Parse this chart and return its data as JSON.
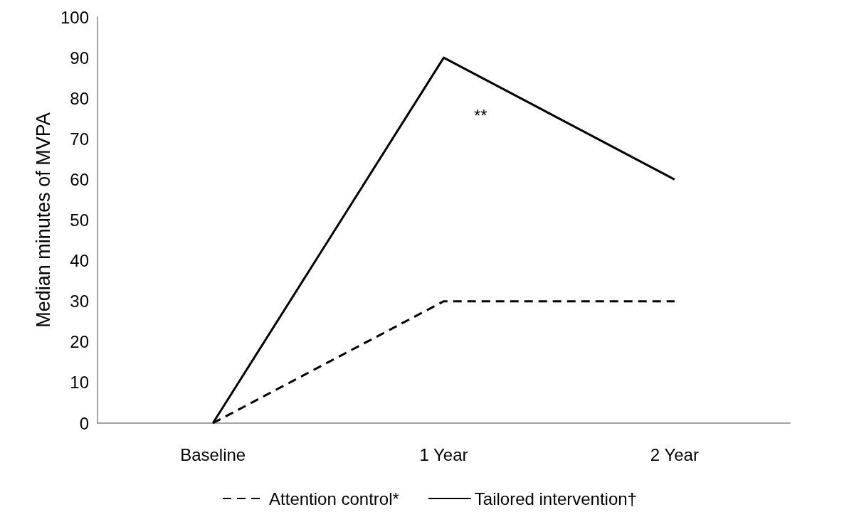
{
  "chart_data": {
    "type": "line",
    "ylabel": "Median minutes of MVPA",
    "categories": [
      "Baseline",
      "1 Year",
      "2 Year"
    ],
    "series": [
      {
        "name": "Attention control*",
        "color": "#000000",
        "line_style": "dashed",
        "values": [
          0,
          30,
          30
        ]
      },
      {
        "name": "Tailored intervention†",
        "color": "#000000",
        "line_style": "solid",
        "values": [
          0,
          90,
          60
        ]
      }
    ],
    "ylim": [
      0,
      100
    ],
    "yticks": [
      0,
      10,
      20,
      30,
      40,
      50,
      60,
      70,
      80,
      90,
      100
    ],
    "annotations": [
      "**"
    ],
    "grid": false,
    "legend": "bottom",
    "marker": "none"
  }
}
